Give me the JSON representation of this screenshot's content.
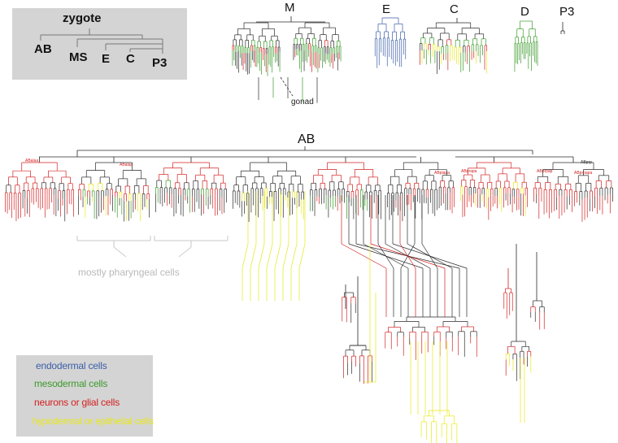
{
  "summary": {
    "zygote": "zygote",
    "ab": "AB",
    "ms": "MS",
    "e": "E",
    "c": "C",
    "p3": "P3"
  },
  "lineages": {
    "m": "M",
    "e": "E",
    "c": "C",
    "d": "D",
    "p3": "P3",
    "ab": "AB"
  },
  "annotations": {
    "gonad": "gonad",
    "pharyngeal": "mostly pharyngeal cells"
  },
  "sublineage_labels": [
    "ABalaa",
    "ABalap",
    "ABplapa",
    "ABprapa",
    "ABprpap",
    "ABprpapa",
    "ABprp"
  ],
  "legend": [
    {
      "label": "endodermal cells",
      "color": "#3b5ea8"
    },
    {
      "label": "mesodermal cells",
      "color": "#3a9a2a"
    },
    {
      "label": "neurons or glial cells",
      "color": "#d42020"
    },
    {
      "label": "hypodermal or epithelial cells",
      "color": "#e8e81a"
    }
  ],
  "colors": {
    "tree_line": "#222222",
    "panel_bg": "#d4d4d4",
    "annotation_gray": "#b9b9b9"
  }
}
